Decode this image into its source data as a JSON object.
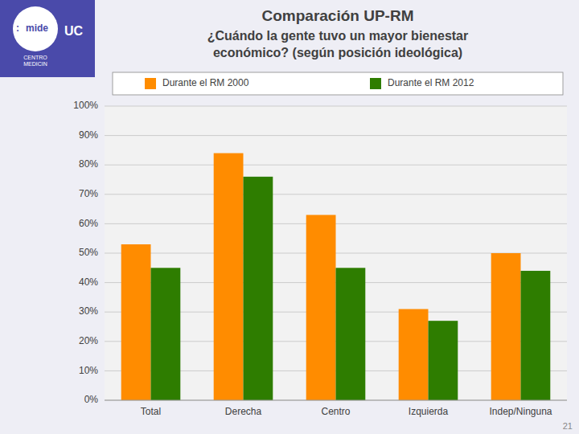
{
  "chart_data": {
    "type": "bar",
    "title": "Comparación UP-RM",
    "subtitle": [
      "¿Cuándo la gente tuvo un mayor bienestar",
      "económico? (según posición ideológica)"
    ],
    "annotations": [
      ":",
      "mide",
      "CENTRO\nMEDICIN",
      "UC",
      "21"
    ],
    "categories": [
      "Total",
      "Derecha",
      "Centro",
      "Izquierda",
      "Indep/Ninguna"
    ],
    "series": [
      {
        "name": "Durante el RM 2000",
        "color": "#FF8C00",
        "values": [
          0.53,
          0.84,
          0.63,
          0.31,
          0.5
        ]
      },
      {
        "name": "Durante el RM 2012",
        "color": "#2E7D00",
        "values": [
          0.45,
          0.76,
          0.45,
          0.27,
          0.44
        ]
      }
    ],
    "ylim": [
      0,
      1.0
    ],
    "yticks": [
      {
        "value": 0.0,
        "label": "0%"
      },
      {
        "value": 0.1,
        "label": "10%"
      },
      {
        "value": 0.2,
        "label": "20%"
      },
      {
        "value": 0.3,
        "label": "30%"
      },
      {
        "value": 0.4,
        "label": "40%"
      },
      {
        "value": 0.5,
        "label": "50%"
      },
      {
        "value": 0.6,
        "label": "60%"
      },
      {
        "value": 0.7,
        "label": "70%"
      },
      {
        "value": 0.8,
        "label": "80%"
      },
      {
        "value": 0.9,
        "label": "90%"
      },
      {
        "value": 1.0,
        "label": "100%"
      }
    ],
    "grid": true,
    "legend": "top"
  }
}
